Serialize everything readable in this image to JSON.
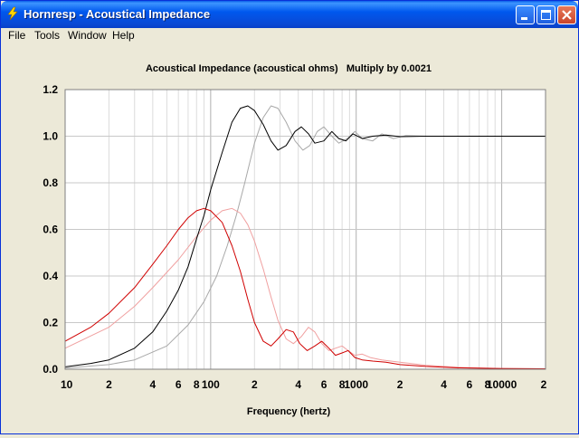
{
  "window": {
    "title": "Hornresp - Acoustical Impedance"
  },
  "menu": {
    "items": [
      "File",
      "Tools",
      "Window",
      "Help"
    ]
  },
  "colors": {
    "titlebar": "#0058ee",
    "plot_bg": "#ffffff",
    "grid": "#c8c8c8",
    "series_black": "#000000",
    "series_red": "#d00000"
  },
  "chart_data": {
    "type": "line",
    "title": "Acoustical Impedance (acoustical ohms)   Multiply by 0.0021",
    "xlabel": "Frequency (hertz)",
    "ylabel": "",
    "x_scale": "log",
    "xlim": [
      10,
      20000
    ],
    "ylim": [
      0,
      1.2
    ],
    "grid": true,
    "x_ticks": [
      {
        "value": 10,
        "label": "10"
      },
      {
        "value": 20,
        "label": "2"
      },
      {
        "value": 40,
        "label": "4"
      },
      {
        "value": 60,
        "label": "6"
      },
      {
        "value": 80,
        "label": "8"
      },
      {
        "value": 100,
        "label": "100"
      },
      {
        "value": 200,
        "label": "2"
      },
      {
        "value": 400,
        "label": "4"
      },
      {
        "value": 600,
        "label": "6"
      },
      {
        "value": 800,
        "label": "8"
      },
      {
        "value": 1000,
        "label": "1000"
      },
      {
        "value": 2000,
        "label": "2"
      },
      {
        "value": 4000,
        "label": "4"
      },
      {
        "value": 6000,
        "label": "6"
      },
      {
        "value": 8000,
        "label": "8"
      },
      {
        "value": 10000,
        "label": "10000"
      },
      {
        "value": 20000,
        "label": "2"
      }
    ],
    "y_ticks": [
      {
        "value": 0,
        "label": "0.0"
      },
      {
        "value": 0.2,
        "label": "0.2"
      },
      {
        "value": 0.4,
        "label": "0.4"
      },
      {
        "value": 0.6,
        "label": "0.6"
      },
      {
        "value": 0.8,
        "label": "0.8"
      },
      {
        "value": 1.0,
        "label": "1.0"
      },
      {
        "value": 1.2,
        "label": "1.2"
      }
    ],
    "series": [
      {
        "color": "#000000",
        "points": [
          [
            10,
            0.01
          ],
          [
            15,
            0.025
          ],
          [
            20,
            0.04
          ],
          [
            30,
            0.09
          ],
          [
            40,
            0.16
          ],
          [
            50,
            0.25
          ],
          [
            60,
            0.34
          ],
          [
            70,
            0.44
          ],
          [
            80,
            0.56
          ],
          [
            90,
            0.66
          ],
          [
            100,
            0.77
          ],
          [
            120,
            0.93
          ],
          [
            140,
            1.06
          ],
          [
            160,
            1.12
          ],
          [
            180,
            1.13
          ],
          [
            200,
            1.11
          ],
          [
            230,
            1.05
          ],
          [
            260,
            0.98
          ],
          [
            290,
            0.94
          ],
          [
            330,
            0.96
          ],
          [
            380,
            1.02
          ],
          [
            420,
            1.04
          ],
          [
            470,
            1.01
          ],
          [
            520,
            0.97
          ],
          [
            600,
            0.98
          ],
          [
            680,
            1.02
          ],
          [
            760,
            0.99
          ],
          [
            850,
            0.98
          ],
          [
            950,
            1.01
          ],
          [
            1100,
            0.99
          ],
          [
            1300,
            1.0
          ],
          [
            1600,
            1.005
          ],
          [
            2000,
            0.998
          ],
          [
            3000,
            1.0
          ],
          [
            20000,
            1.0
          ]
        ]
      },
      {
        "color": "#a8a8a8",
        "points": [
          [
            10,
            0.005
          ],
          [
            20,
            0.02
          ],
          [
            30,
            0.04
          ],
          [
            50,
            0.1
          ],
          [
            70,
            0.19
          ],
          [
            90,
            0.29
          ],
          [
            110,
            0.4
          ],
          [
            130,
            0.53
          ],
          [
            150,
            0.66
          ],
          [
            170,
            0.79
          ],
          [
            200,
            0.97
          ],
          [
            230,
            1.08
          ],
          [
            260,
            1.13
          ],
          [
            290,
            1.12
          ],
          [
            330,
            1.06
          ],
          [
            380,
            0.98
          ],
          [
            430,
            0.94
          ],
          [
            480,
            0.96
          ],
          [
            540,
            1.02
          ],
          [
            600,
            1.04
          ],
          [
            680,
            1.0
          ],
          [
            760,
            0.97
          ],
          [
            870,
            0.99
          ],
          [
            980,
            1.02
          ],
          [
            1100,
            0.99
          ],
          [
            1300,
            0.98
          ],
          [
            1500,
            1.01
          ],
          [
            1800,
            0.99
          ],
          [
            2200,
            1.003
          ],
          [
            3000,
            1.0
          ],
          [
            20000,
            1.0
          ]
        ]
      },
      {
        "color": "#d00000",
        "points": [
          [
            10,
            0.12
          ],
          [
            15,
            0.18
          ],
          [
            20,
            0.24
          ],
          [
            30,
            0.35
          ],
          [
            40,
            0.45
          ],
          [
            50,
            0.53
          ],
          [
            60,
            0.6
          ],
          [
            70,
            0.65
          ],
          [
            80,
            0.68
          ],
          [
            90,
            0.69
          ],
          [
            100,
            0.68
          ],
          [
            120,
            0.63
          ],
          [
            140,
            0.53
          ],
          [
            160,
            0.42
          ],
          [
            180,
            0.3
          ],
          [
            200,
            0.2
          ],
          [
            230,
            0.12
          ],
          [
            260,
            0.1
          ],
          [
            290,
            0.13
          ],
          [
            330,
            0.17
          ],
          [
            370,
            0.16
          ],
          [
            410,
            0.11
          ],
          [
            460,
            0.08
          ],
          [
            520,
            0.1
          ],
          [
            580,
            0.12
          ],
          [
            650,
            0.09
          ],
          [
            720,
            0.06
          ],
          [
            800,
            0.07
          ],
          [
            880,
            0.08
          ],
          [
            980,
            0.05
          ],
          [
            1100,
            0.04
          ],
          [
            1300,
            0.035
          ],
          [
            1600,
            0.03
          ],
          [
            2000,
            0.02
          ],
          [
            3000,
            0.012
          ],
          [
            5000,
            0.006
          ],
          [
            10000,
            0.003
          ],
          [
            20000,
            0.002
          ]
        ]
      },
      {
        "color": "#f0a0a0",
        "points": [
          [
            10,
            0.09
          ],
          [
            20,
            0.18
          ],
          [
            30,
            0.27
          ],
          [
            40,
            0.35
          ],
          [
            60,
            0.47
          ],
          [
            80,
            0.57
          ],
          [
            100,
            0.64
          ],
          [
            120,
            0.68
          ],
          [
            140,
            0.69
          ],
          [
            160,
            0.67
          ],
          [
            180,
            0.62
          ],
          [
            200,
            0.55
          ],
          [
            230,
            0.43
          ],
          [
            260,
            0.31
          ],
          [
            290,
            0.21
          ],
          [
            330,
            0.13
          ],
          [
            370,
            0.11
          ],
          [
            420,
            0.14
          ],
          [
            470,
            0.18
          ],
          [
            520,
            0.16
          ],
          [
            580,
            0.11
          ],
          [
            650,
            0.08
          ],
          [
            720,
            0.09
          ],
          [
            800,
            0.1
          ],
          [
            880,
            0.08
          ],
          [
            980,
            0.06
          ],
          [
            1100,
            0.065
          ],
          [
            1250,
            0.05
          ],
          [
            1500,
            0.04
          ],
          [
            2000,
            0.03
          ],
          [
            3000,
            0.017
          ],
          [
            5000,
            0.008
          ],
          [
            10000,
            0.003
          ],
          [
            20000,
            0.002
          ]
        ]
      }
    ]
  }
}
